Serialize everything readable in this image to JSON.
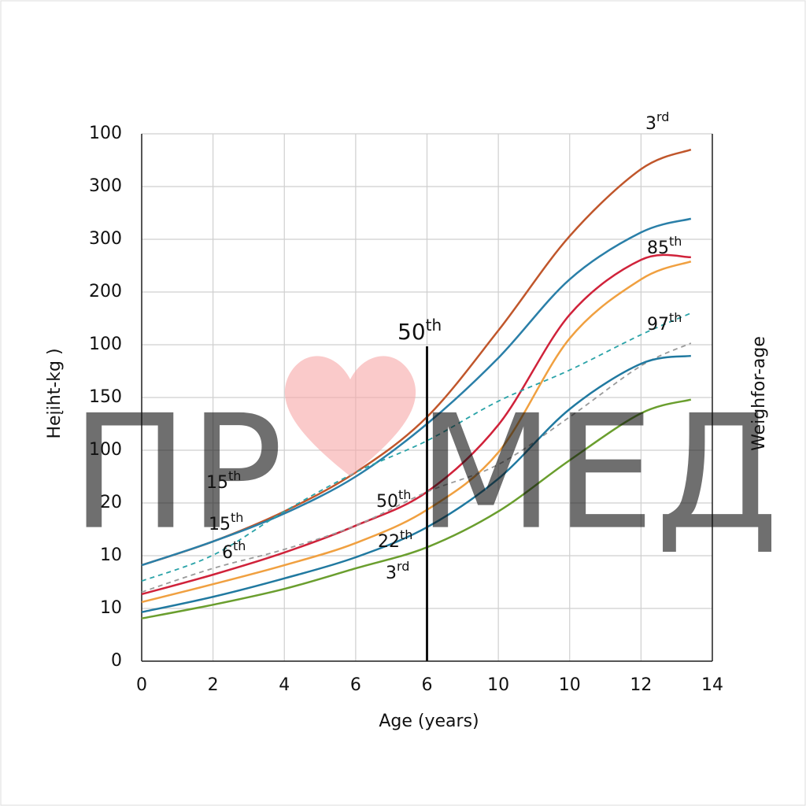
{
  "chart_data": {
    "type": "line",
    "y_label": "Heįiht-kg )",
    "y2_label": "Weighfor-age",
    "x_label": "Age (years)",
    "x": [
      0,
      1,
      2,
      3,
      4,
      5,
      6,
      7,
      7.7
    ],
    "xlim": [
      0,
      8
    ],
    "xticks": [
      {
        "value": 0,
        "label": "0"
      },
      {
        "value": 1,
        "label": "2"
      },
      {
        "value": 2,
        "label": "4"
      },
      {
        "value": 3,
        "label": "6"
      },
      {
        "value": 4,
        "label": "6"
      },
      {
        "value": 5,
        "label": "10"
      },
      {
        "value": 6,
        "label": "10"
      },
      {
        "value": 7,
        "label": "12"
      },
      {
        "value": 8,
        "label": "14"
      }
    ],
    "ylim": [
      0,
      10
    ],
    "yticks": [
      {
        "value": 0,
        "label": "0"
      },
      {
        "value": 1,
        "label": "10"
      },
      {
        "value": 2,
        "label": "10"
      },
      {
        "value": 3,
        "label": "20"
      },
      {
        "value": 4,
        "label": "100"
      },
      {
        "value": 5,
        "label": "150"
      },
      {
        "value": 6,
        "label": "100"
      },
      {
        "value": 7,
        "label": "200"
      },
      {
        "value": 8,
        "label": "300"
      },
      {
        "value": 9,
        "label": "300"
      },
      {
        "value": 10,
        "label": "100"
      }
    ],
    "grid": true,
    "series": [
      {
        "color": "#c0562b",
        "dashed": false,
        "values": [
          1.82,
          2.27,
          2.84,
          3.58,
          4.63,
          6.27,
          8.06,
          9.33,
          9.7
        ]
      },
      {
        "color": "#2a7fa8",
        "dashed": false,
        "values": [
          1.82,
          2.27,
          2.8,
          3.5,
          4.5,
          5.75,
          7.24,
          8.13,
          8.39
        ]
      },
      {
        "color": "#d0223a",
        "dashed": false,
        "values": [
          1.27,
          1.64,
          2.06,
          2.57,
          3.21,
          4.48,
          6.57,
          7.61,
          7.66
        ]
      },
      {
        "color": "#f0a040",
        "dashed": false,
        "values": [
          1.12,
          1.46,
          1.82,
          2.24,
          2.87,
          3.96,
          6.12,
          7.24,
          7.58
        ]
      },
      {
        "color": "#2aa3a8",
        "dashed": true,
        "values": [
          1.52,
          2.01,
          2.84,
          3.58,
          4.18,
          4.93,
          5.52,
          6.19,
          6.6
        ]
      },
      {
        "color": "#9a9a9a",
        "dashed": true,
        "values": [
          1.31,
          1.76,
          2.12,
          2.57,
          3.21,
          3.73,
          4.63,
          5.6,
          6.03
        ]
      },
      {
        "color": "#2079a0",
        "dashed": false,
        "values": [
          0.93,
          1.22,
          1.57,
          1.97,
          2.54,
          3.46,
          4.78,
          5.64,
          5.79
        ]
      },
      {
        "color": "#6a9e2e",
        "dashed": false,
        "values": [
          0.81,
          1.07,
          1.37,
          1.76,
          2.16,
          2.84,
          3.81,
          4.7,
          4.96
        ]
      }
    ],
    "vline": 4,
    "annotations": [
      {
        "text": "3",
        "sup": "rd"
      },
      {
        "text": "85",
        "sup": "th"
      },
      {
        "text": "97",
        "sup": "th"
      },
      {
        "text": "50",
        "sup": "th"
      },
      {
        "text": "15",
        "sup": "th"
      },
      {
        "text": "15",
        "sup": "th"
      },
      {
        "text": "6",
        "sup": "th"
      },
      {
        "text": "50",
        "sup": "th"
      },
      {
        "text": "22",
        "sup": "th"
      },
      {
        "text": "3",
        "sup": "rd"
      }
    ],
    "watermark": {
      "left": "ПР",
      "right": "МЕД"
    }
  }
}
